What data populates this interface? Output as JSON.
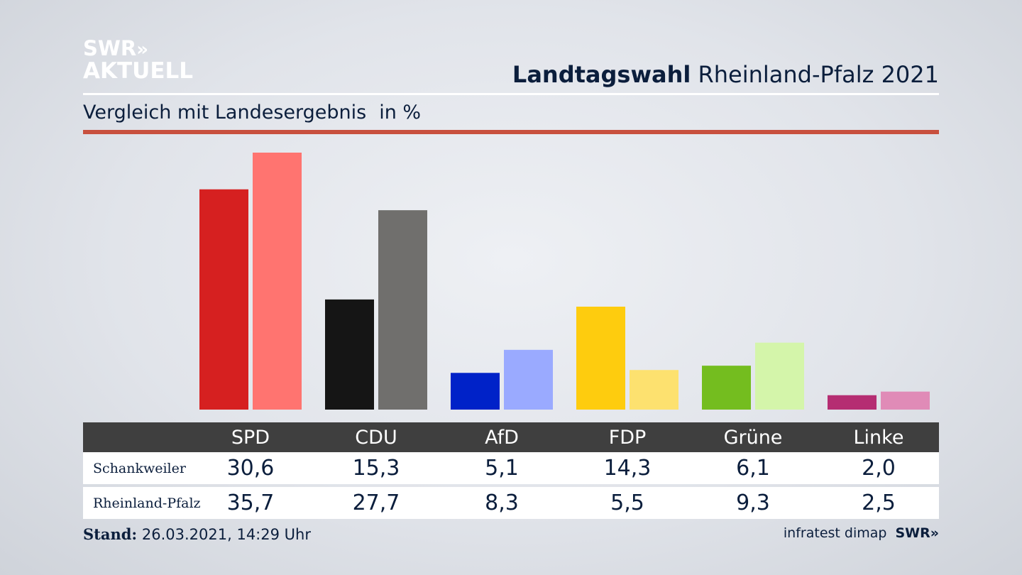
{
  "logo": {
    "line1": "SWR",
    "chevrons": "»",
    "line2": "AKTUELL"
  },
  "header": {
    "title_bold": "Landtagswahl",
    "title_rest": "Rheinland-Pfalz 2021"
  },
  "subheader": {
    "text": "Vergleich mit Landesergebnis",
    "unit": "in %"
  },
  "colors": {
    "accent_rule": "#c8503e",
    "table_header_bg": "#3f3f3f"
  },
  "chart_data": {
    "type": "bar",
    "categories": [
      "SPD",
      "CDU",
      "AfD",
      "FDP",
      "Grüne",
      "Linke"
    ],
    "series": [
      {
        "name": "Schankweiler",
        "values": [
          30.6,
          15.3,
          5.1,
          14.3,
          6.1,
          2.0
        ],
        "labels": [
          "30,6",
          "15,3",
          "5,1",
          "14,3",
          "6,1",
          "2,0"
        ],
        "colors": [
          "#d62020",
          "#151515",
          "#0022c8",
          "#fecc0e",
          "#74bd1f",
          "#b52d72"
        ]
      },
      {
        "name": "Rheinland-Pfalz",
        "values": [
          35.7,
          27.7,
          8.3,
          5.5,
          9.3,
          2.5
        ],
        "labels": [
          "35,7",
          "27,7",
          "8,3",
          "5,5",
          "9,3",
          "2,5"
        ],
        "colors": [
          "#ff7470",
          "#706f6d",
          "#9aaaff",
          "#fde16f",
          "#d4f5aa",
          "#e08bb7"
        ]
      }
    ],
    "ylim": [
      0,
      36
    ]
  },
  "footer": {
    "stand_label": "Stand:",
    "stand_value": "26.03.2021, 14:29 Uhr",
    "source": "infratest dimap",
    "brand": "SWR»"
  }
}
